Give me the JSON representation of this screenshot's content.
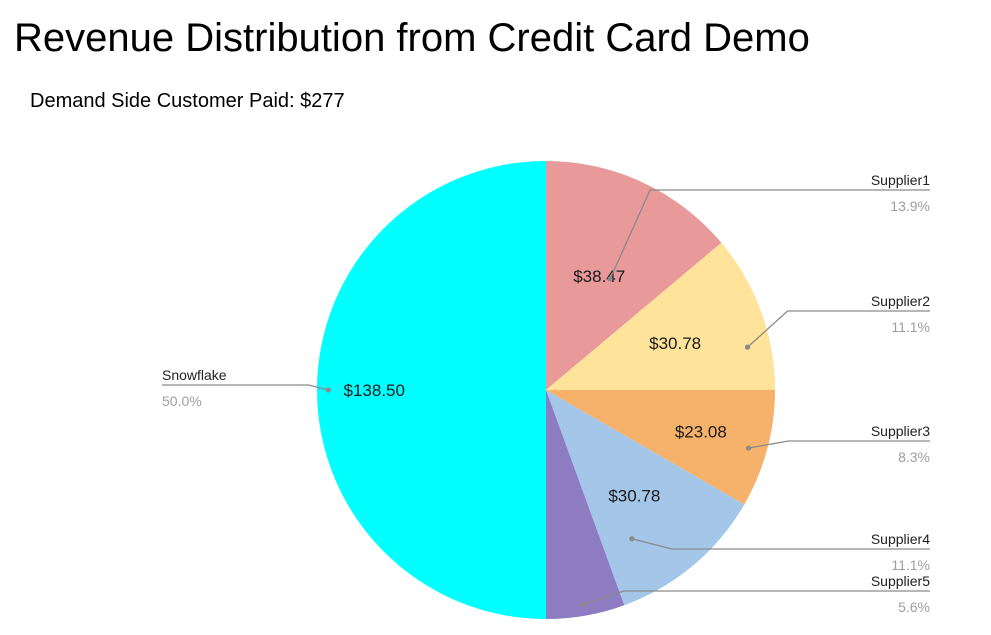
{
  "title": "Revenue Distribution from Credit Card Demo",
  "subtitle": "Demand Side Customer Paid: $277",
  "chart_data": {
    "type": "pie",
    "title": "Revenue Distribution from Credit Card Demo",
    "subtitle": "Demand Side Customer Paid: $277",
    "legend_position": "labeled",
    "slices": [
      {
        "name": "Supplier1",
        "value": 38.47,
        "value_label": "$38.47",
        "percent_label": "13.9%",
        "color": "#e89a9a"
      },
      {
        "name": "Supplier2",
        "value": 30.78,
        "value_label": "$30.78",
        "percent_label": "11.1%",
        "color": "#ffe39b"
      },
      {
        "name": "Supplier3",
        "value": 23.08,
        "value_label": "$23.08",
        "percent_label": "8.3%",
        "color": "#f6b26b"
      },
      {
        "name": "Supplier4",
        "value": 30.78,
        "value_label": "$30.78",
        "percent_label": "11.1%",
        "color": "#a4c6e8"
      },
      {
        "name": "Supplier5",
        "value": 15.39,
        "value_label": "",
        "percent_label": "5.6%",
        "color": "#8e7cc3"
      },
      {
        "name": "Snowflake",
        "value": 138.5,
        "value_label": "$138.50",
        "percent_label": "50.0%",
        "color": "#00ffff"
      }
    ]
  }
}
